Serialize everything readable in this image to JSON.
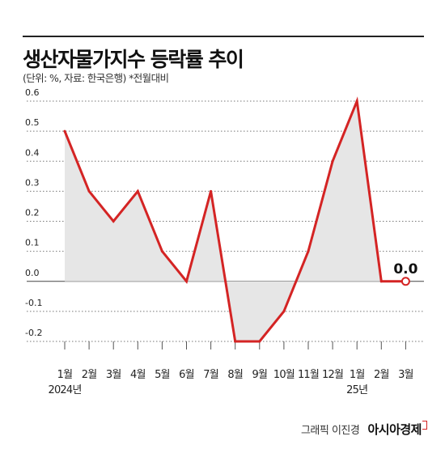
{
  "header": {
    "title": "생산자물가지수 등락률 추이",
    "subtitle": "(단위: %, 자료: 한국은행) *전월대비"
  },
  "footer": {
    "credit": "그래픽 이진경",
    "brand": "아시아경제"
  },
  "colors": {
    "line": "#d42424",
    "fill": "#e6e6e6",
    "grid": "#777777",
    "text": "#222222"
  },
  "chart_data": {
    "type": "area",
    "categories": [
      "1월",
      "2월",
      "3월",
      "4월",
      "5월",
      "6월",
      "7월",
      "8월",
      "9월",
      "10월",
      "11월",
      "12월",
      "1월",
      "2월",
      "3월"
    ],
    "year_labels": [
      {
        "index": 0,
        "text": "2024년"
      },
      {
        "index": 12,
        "text": "25년"
      }
    ],
    "series": [
      {
        "values": [
          0.5,
          0.3,
          0.2,
          0.3,
          0.1,
          0.0,
          0.3,
          -0.2,
          -0.2,
          -0.1,
          0.1,
          0.4,
          0.6,
          0.0,
          0.0
        ]
      }
    ],
    "yticks": [
      0.6,
      0.5,
      0.4,
      0.3,
      0.2,
      0.1,
      0.0,
      -0.1,
      -0.2
    ],
    "ytick_labels": [
      "0.6",
      "0.5",
      "0.4",
      "0.3",
      "0.2",
      "0.1",
      "0.0",
      "-0.1",
      "-0.2"
    ],
    "ylim": [
      -0.2,
      0.6
    ],
    "grid": true,
    "annotations": [
      {
        "index": 14,
        "text": "0.0"
      }
    ]
  }
}
